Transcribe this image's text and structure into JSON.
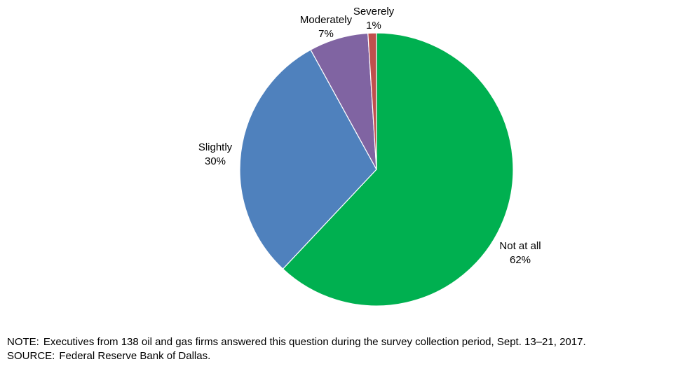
{
  "chart_data": {
    "type": "pie",
    "title": "",
    "slices": [
      {
        "label": "Not at all",
        "value": 62,
        "value_label": "62%",
        "color": "#00b050"
      },
      {
        "label": "Slightly",
        "value": 30,
        "value_label": "30%",
        "color": "#4f81bd"
      },
      {
        "label": "Moderately",
        "value": 7,
        "value_label": "7%",
        "color": "#8064a2"
      },
      {
        "label": "Severely",
        "value": 1,
        "value_label": "1%",
        "color": "#c0504d"
      }
    ],
    "start": "12 o'clock",
    "direction": "clockwise",
    "legend": "none"
  },
  "footer": {
    "note_prefix": "NOTE:",
    "note_text": "Executives from 138 oil and gas firms answered this question during the survey collection period, Sept. 13–21, 2017.",
    "source_prefix": "SOURCE:",
    "source_text": "Federal Reserve Bank of Dallas."
  }
}
